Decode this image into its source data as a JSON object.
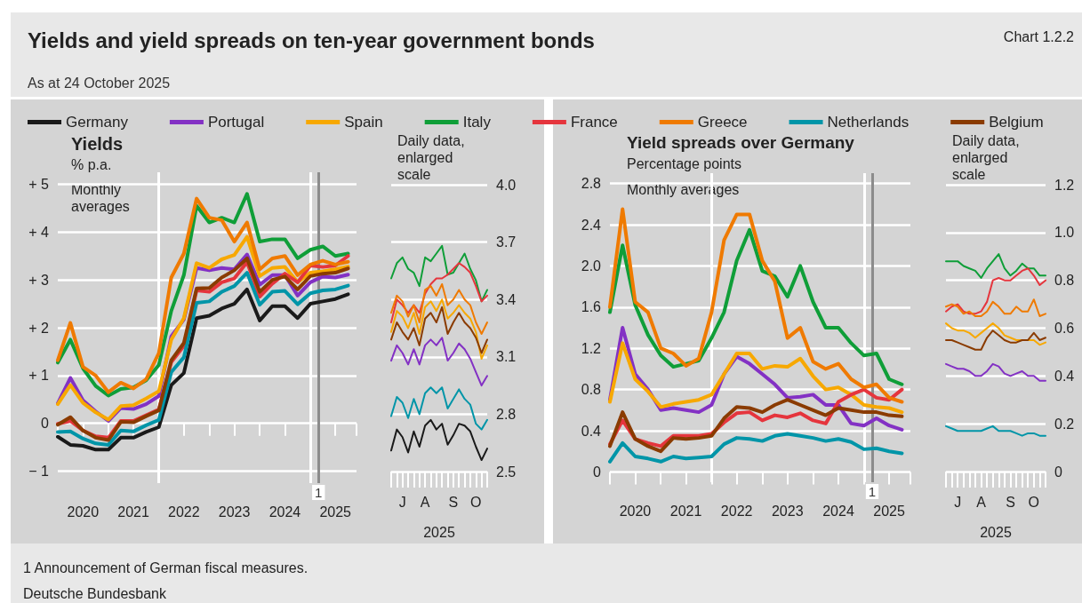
{
  "chart_data": [
    {
      "type": "line",
      "title": "Yields and yield spreads on ten-year government bonds",
      "subtitle": "As at 24 October 2025",
      "ylabel": "% p.a.",
      "legend": "top",
      "grid": "y",
      "annotations": [
        "Yields",
        "Monthly averages",
        "Chart 1.2.2",
        "1 Announcement of German fiscal measures.",
        "Deutsche Bundesbank"
      ],
      "x": [
        "2020-01",
        "2020-04",
        "2020-07",
        "2020-10",
        "2021-01",
        "2021-04",
        "2021-07",
        "2021-10",
        "2022-01",
        "2022-04",
        "2022-07",
        "2022-10",
        "2023-01",
        "2023-04",
        "2023-07",
        "2023-10",
        "2024-01",
        "2024-04",
        "2024-07",
        "2024-10",
        "2025-01",
        "2025-04",
        "2025-07",
        "2025-10"
      ],
      "xlim": [
        "2020-01",
        "2025-12"
      ],
      "xticks": [
        {
          "value": "2020-01",
          "label": null
        },
        {
          "value": "2020-07",
          "label": "2020"
        },
        {
          "value": "2021-01",
          "label": null
        },
        {
          "value": "2021-07",
          "label": "2021"
        },
        {
          "value": "2022-01",
          "label": null
        },
        {
          "value": "2022-07",
          "label": "2022"
        },
        {
          "value": "2023-01",
          "label": null
        },
        {
          "value": "2023-07",
          "label": "2023"
        },
        {
          "value": "2024-01",
          "label": null
        },
        {
          "value": "2024-07",
          "label": "2024"
        },
        {
          "value": "2025-01",
          "label": null
        },
        {
          "value": "2025-07",
          "label": "2025"
        },
        {
          "value": "2025-12",
          "label": null
        }
      ],
      "ylim": [
        -1.25,
        5.25
      ],
      "yticks": [
        {
          "value": -1,
          "label": "− 1"
        },
        0,
        {
          "value": 1,
          "label": "+ 1"
        },
        {
          "value": 2,
          "label": "+ 2"
        },
        {
          "value": 3,
          "label": "+ 3"
        },
        {
          "value": 4,
          "label": "+ 4"
        },
        {
          "value": 5,
          "label": "+ 5"
        }
      ],
      "ref_lines": [
        {
          "axis": "x",
          "value": "2022-01",
          "color": "#ffffff"
        },
        {
          "axis": "x",
          "value": "2025-01",
          "color": "#ffffff"
        },
        {
          "axis": "x",
          "value": "2025-03",
          "label": "1",
          "color": "#8c8c8c"
        }
      ],
      "series": [
        {
          "name": "Germany",
          "color": "#1a1a1a",
          "values": [
            -0.28,
            -0.45,
            -0.47,
            -0.55,
            -0.55,
            -0.3,
            -0.3,
            -0.18,
            -0.08,
            0.8,
            1.05,
            2.2,
            2.25,
            2.4,
            2.5,
            2.8,
            2.15,
            2.45,
            2.45,
            2.2,
            2.5,
            2.55,
            2.6,
            2.7
          ]
        },
        {
          "name": "Portugal",
          "color": "#8331c4",
          "values": [
            0.42,
            0.95,
            0.48,
            0.25,
            0.05,
            0.32,
            0.3,
            0.4,
            0.57,
            1.82,
            2.17,
            3.25,
            3.2,
            3.25,
            3.22,
            3.53,
            2.9,
            3.1,
            3.1,
            2.67,
            2.95,
            3.07,
            3.05,
            3.11
          ]
        },
        {
          "name": "Spain",
          "color": "#f7a800",
          "values": [
            0.4,
            0.8,
            0.43,
            0.23,
            0.08,
            0.36,
            0.38,
            0.52,
            0.67,
            1.75,
            2.2,
            3.35,
            3.25,
            3.43,
            3.52,
            3.9,
            3.08,
            3.25,
            3.27,
            2.95,
            3.15,
            3.18,
            3.22,
            3.28
          ]
        },
        {
          "name": "Italy",
          "color": "#0f9e38",
          "values": [
            1.27,
            1.75,
            1.15,
            0.78,
            0.58,
            0.72,
            0.75,
            0.9,
            1.22,
            2.35,
            3.1,
            4.55,
            4.2,
            4.3,
            4.2,
            4.8,
            3.8,
            3.85,
            3.85,
            3.45,
            3.63,
            3.7,
            3.5,
            3.55
          ]
        },
        {
          "name": "France",
          "color": "#e5353d",
          "values": [
            -0.01,
            0.05,
            -0.15,
            -0.27,
            -0.3,
            0.05,
            0.05,
            0.17,
            0.29,
            1.28,
            1.62,
            2.78,
            2.75,
            2.95,
            3.03,
            3.37,
            2.65,
            2.92,
            3.13,
            2.95,
            3.3,
            3.27,
            3.3,
            3.5
          ]
        },
        {
          "name": "Greece",
          "color": "#ef7a00",
          "values": [
            1.32,
            2.1,
            1.18,
            1.0,
            0.65,
            0.85,
            0.73,
            0.92,
            1.47,
            3.05,
            3.55,
            4.7,
            4.3,
            4.25,
            3.8,
            4.2,
            3.22,
            3.45,
            3.5,
            3.1,
            3.32,
            3.4,
            3.32,
            3.38
          ]
        },
        {
          "name": "Netherlands",
          "color": "#0095a8",
          "values": [
            -0.18,
            -0.17,
            -0.32,
            -0.42,
            -0.45,
            -0.15,
            -0.17,
            -0.04,
            0.07,
            1.07,
            1.38,
            2.52,
            2.55,
            2.75,
            2.87,
            3.15,
            2.48,
            2.75,
            2.77,
            2.49,
            2.72,
            2.78,
            2.8,
            2.88
          ]
        },
        {
          "name": "Belgium",
          "color": "#8a3b00",
          "values": [
            -0.03,
            0.13,
            -0.15,
            -0.3,
            -0.35,
            0.03,
            0.02,
            0.15,
            0.27,
            1.32,
            1.68,
            2.82,
            2.83,
            3.05,
            3.2,
            3.45,
            2.75,
            3.0,
            3.07,
            2.8,
            3.08,
            3.13,
            3.15,
            3.24
          ]
        }
      ]
    },
    {
      "type": "line",
      "xlabel": "2025",
      "grid": "y",
      "annotations": [
        "Daily data, enlarged scale"
      ],
      "categories": [
        null,
        null,
        "J",
        null,
        null,
        null,
        "A",
        null,
        null,
        null,
        null,
        "S",
        null,
        null,
        null,
        "O",
        null,
        null
      ],
      "ylim": [
        2.5,
        4.0
      ],
      "yticks": [
        2.5,
        2.8,
        3.1,
        3.4,
        3.7,
        {
          "value": 4,
          "label": "4.0"
        }
      ],
      "series": [
        {
          "color": "#1a1a1a",
          "values": [
            2.61,
            2.72,
            2.68,
            2.6,
            2.71,
            2.63,
            2.74,
            2.77,
            2.72,
            2.75,
            2.64,
            2.69,
            2.75,
            2.74,
            2.71,
            2.63,
            2.56,
            2.62
          ]
        },
        {
          "color": "#8331c4",
          "values": [
            3.08,
            3.16,
            3.12,
            3.06,
            3.14,
            3.06,
            3.16,
            3.19,
            3.16,
            3.2,
            3.08,
            3.12,
            3.17,
            3.14,
            3.09,
            3.02,
            2.95,
            3.0
          ]
        },
        {
          "color": "#f7a800",
          "values": [
            3.23,
            3.34,
            3.31,
            3.25,
            3.33,
            3.22,
            3.36,
            3.39,
            3.34,
            3.4,
            3.3,
            3.33,
            3.37,
            3.33,
            3.3,
            3.23,
            3.09,
            3.16
          ]
        },
        {
          "color": "#0f9e38",
          "values": [
            3.51,
            3.59,
            3.62,
            3.56,
            3.54,
            3.47,
            3.62,
            3.6,
            3.64,
            3.68,
            3.53,
            3.54,
            3.59,
            3.64,
            3.56,
            3.5,
            3.39,
            3.45
          ]
        },
        {
          "color": "#e5353d",
          "values": [
            3.28,
            3.4,
            3.37,
            3.33,
            3.37,
            3.33,
            3.43,
            3.48,
            3.51,
            3.51,
            3.53,
            3.56,
            3.59,
            3.57,
            3.54,
            3.47,
            3.39,
            3.42
          ]
        },
        {
          "color": "#ef7a00",
          "values": [
            3.33,
            3.42,
            3.39,
            3.31,
            3.37,
            3.28,
            3.45,
            3.47,
            3.42,
            3.48,
            3.37,
            3.4,
            3.45,
            3.4,
            3.37,
            3.28,
            3.22,
            3.28
          ]
        },
        {
          "color": "#0095a8",
          "values": [
            2.79,
            2.89,
            2.86,
            2.78,
            2.88,
            2.8,
            2.91,
            2.94,
            2.91,
            2.94,
            2.83,
            2.88,
            2.93,
            2.88,
            2.85,
            2.75,
            2.72,
            2.77
          ]
        },
        {
          "color": "#8a3b00",
          "values": [
            3.19,
            3.28,
            3.23,
            3.19,
            3.25,
            3.16,
            3.3,
            3.33,
            3.28,
            3.36,
            3.22,
            3.28,
            3.33,
            3.28,
            3.25,
            3.2,
            3.12,
            3.19
          ]
        }
      ]
    },
    {
      "type": "line",
      "title": "Yield spreads over Germany",
      "ylabel": "Percentage points",
      "grid": "y",
      "annotations": [
        "Monthly averages"
      ],
      "x": [
        "2020-01",
        "2020-04",
        "2020-07",
        "2020-10",
        "2021-01",
        "2021-04",
        "2021-07",
        "2021-10",
        "2022-01",
        "2022-04",
        "2022-07",
        "2022-10",
        "2023-01",
        "2023-04",
        "2023-07",
        "2023-10",
        "2024-01",
        "2024-04",
        "2024-07",
        "2024-10",
        "2025-01",
        "2025-04",
        "2025-07",
        "2025-10"
      ],
      "xlim": [
        "2020-01",
        "2025-12"
      ],
      "xticks": [
        {
          "value": "2020-01",
          "label": null
        },
        {
          "value": "2020-07",
          "label": "2020"
        },
        {
          "value": "2021-01",
          "label": null
        },
        {
          "value": "2021-07",
          "label": "2021"
        },
        {
          "value": "2022-01",
          "label": null
        },
        {
          "value": "2022-07",
          "label": "2022"
        },
        {
          "value": "2023-01",
          "label": null
        },
        {
          "value": "2023-07",
          "label": "2023"
        },
        {
          "value": "2024-01",
          "label": null
        },
        {
          "value": "2024-07",
          "label": "2024"
        },
        {
          "value": "2025-01",
          "label": null
        },
        {
          "value": "2025-07",
          "label": "2025"
        },
        {
          "value": "2025-12",
          "label": null
        }
      ],
      "ylim": [
        -0.1,
        2.9
      ],
      "yticks": [
        0,
        0.4,
        0.8,
        1.2,
        1.6,
        {
          "value": 2,
          "label": "2.0"
        },
        2.4,
        2.8
      ],
      "ref_lines": [
        {
          "axis": "x",
          "value": "2022-01",
          "color": "#ffffff"
        },
        {
          "axis": "x",
          "value": "2025-01",
          "color": "#ffffff"
        },
        {
          "axis": "x",
          "value": "2025-03",
          "label": "1",
          "color": "#8c8c8c"
        }
      ],
      "series": [
        {
          "color": "#8331c4",
          "values": [
            0.7,
            1.4,
            0.95,
            0.8,
            0.6,
            0.62,
            0.6,
            0.58,
            0.65,
            0.95,
            1.12,
            1.05,
            0.95,
            0.85,
            0.72,
            0.73,
            0.75,
            0.65,
            0.65,
            0.47,
            0.45,
            0.52,
            0.45,
            0.41
          ]
        },
        {
          "color": "#f7a800",
          "values": [
            0.68,
            1.25,
            0.9,
            0.78,
            0.63,
            0.66,
            0.68,
            0.7,
            0.75,
            0.95,
            1.15,
            1.15,
            1.0,
            1.03,
            1.02,
            1.1,
            0.93,
            0.8,
            0.82,
            0.75,
            0.65,
            0.63,
            0.62,
            0.58
          ]
        },
        {
          "color": "#0f9e38",
          "values": [
            1.55,
            2.2,
            1.62,
            1.33,
            1.13,
            1.02,
            1.05,
            1.08,
            1.3,
            1.55,
            2.05,
            2.35,
            1.95,
            1.9,
            1.7,
            2.0,
            1.65,
            1.4,
            1.4,
            1.25,
            1.13,
            1.15,
            0.9,
            0.85
          ]
        },
        {
          "color": "#e5353d",
          "values": [
            0.27,
            0.5,
            0.32,
            0.28,
            0.25,
            0.35,
            0.35,
            0.35,
            0.37,
            0.48,
            0.57,
            0.58,
            0.5,
            0.55,
            0.53,
            0.57,
            0.5,
            0.47,
            0.68,
            0.75,
            0.8,
            0.72,
            0.7,
            0.8
          ]
        },
        {
          "color": "#ef7a00",
          "values": [
            1.6,
            2.55,
            1.65,
            1.55,
            1.2,
            1.15,
            1.03,
            1.1,
            1.55,
            2.25,
            2.5,
            2.5,
            2.05,
            1.85,
            1.3,
            1.4,
            1.07,
            1.0,
            1.05,
            0.9,
            0.82,
            0.85,
            0.72,
            0.68
          ]
        },
        {
          "color": "#0095a8",
          "values": [
            0.1,
            0.28,
            0.15,
            0.13,
            0.1,
            0.15,
            0.13,
            0.14,
            0.15,
            0.27,
            0.33,
            0.32,
            0.3,
            0.35,
            0.37,
            0.35,
            0.33,
            0.3,
            0.32,
            0.29,
            0.22,
            0.23,
            0.2,
            0.18
          ]
        },
        {
          "color": "#8a3b00",
          "values": [
            0.25,
            0.58,
            0.32,
            0.25,
            0.2,
            0.33,
            0.32,
            0.33,
            0.35,
            0.52,
            0.63,
            0.62,
            0.58,
            0.65,
            0.7,
            0.65,
            0.6,
            0.55,
            0.62,
            0.6,
            0.58,
            0.58,
            0.55,
            0.54
          ]
        }
      ]
    },
    {
      "type": "line",
      "xlabel": "2025",
      "grid": "y",
      "annotations": [
        "Daily data, enlarged scale"
      ],
      "categories": [
        null,
        null,
        "J",
        null,
        null,
        null,
        "A",
        null,
        null,
        null,
        null,
        "S",
        null,
        null,
        null,
        "O",
        null,
        null
      ],
      "ylim": [
        0,
        1.2
      ],
      "yticks": [
        0,
        0.2,
        0.4,
        0.6,
        0.8,
        {
          "value": 1,
          "label": "1.0"
        },
        1.2
      ],
      "series": [
        {
          "color": "#8331c4",
          "values": [
            0.45,
            0.44,
            0.43,
            0.43,
            0.42,
            0.4,
            0.4,
            0.42,
            0.45,
            0.44,
            0.41,
            0.4,
            0.41,
            0.42,
            0.4,
            0.4,
            0.38,
            0.38
          ]
        },
        {
          "color": "#f7a800",
          "values": [
            0.62,
            0.6,
            0.59,
            0.59,
            0.58,
            0.56,
            0.58,
            0.6,
            0.62,
            0.6,
            0.57,
            0.56,
            0.55,
            0.55,
            0.55,
            0.55,
            0.53,
            0.54
          ]
        },
        {
          "color": "#0f9e38",
          "values": [
            0.88,
            0.88,
            0.88,
            0.86,
            0.85,
            0.84,
            0.81,
            0.85,
            0.88,
            0.91,
            0.85,
            0.82,
            0.84,
            0.87,
            0.85,
            0.85,
            0.82,
            0.82
          ]
        },
        {
          "color": "#e5353d",
          "values": [
            0.67,
            0.69,
            0.7,
            0.67,
            0.66,
            0.66,
            0.67,
            0.71,
            0.8,
            0.81,
            0.8,
            0.8,
            0.82,
            0.84,
            0.85,
            0.82,
            0.78,
            0.8
          ]
        },
        {
          "color": "#ef7a00",
          "values": [
            0.69,
            0.7,
            0.69,
            0.66,
            0.67,
            0.65,
            0.65,
            0.67,
            0.71,
            0.69,
            0.66,
            0.66,
            0.69,
            0.67,
            0.67,
            0.72,
            0.65,
            0.66
          ]
        },
        {
          "color": "#0095a8",
          "values": [
            0.19,
            0.18,
            0.17,
            0.17,
            0.17,
            0.17,
            0.17,
            0.18,
            0.19,
            0.17,
            0.17,
            0.17,
            0.16,
            0.15,
            0.16,
            0.16,
            0.15,
            0.15
          ]
        },
        {
          "color": "#8a3b00",
          "values": [
            0.55,
            0.55,
            0.54,
            0.53,
            0.52,
            0.51,
            0.51,
            0.56,
            0.59,
            0.57,
            0.55,
            0.54,
            0.54,
            0.55,
            0.55,
            0.58,
            0.55,
            0.56
          ]
        }
      ]
    }
  ]
}
